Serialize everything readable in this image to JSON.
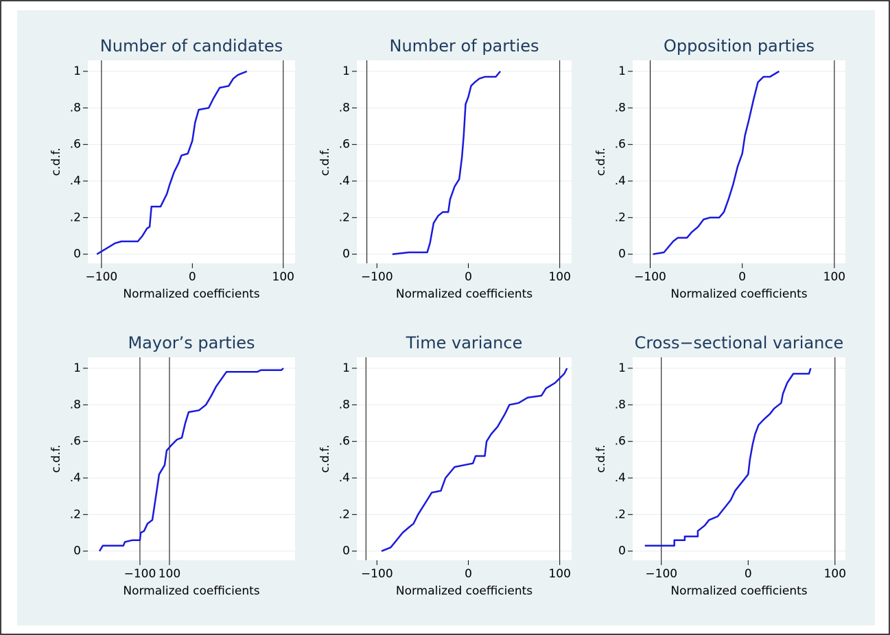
{
  "chart_data": [
    {
      "type": "line",
      "title": "Number of candidates",
      "xlabel": "Normalized coefficients",
      "ylabel": "c.d.f.",
      "color": "#1a1adc",
      "grid": true,
      "xlim": [
        -115,
        113
      ],
      "ylim": [
        -0.05,
        1.06
      ],
      "xticks": [
        {
          "value": -100,
          "label": "−100"
        },
        0,
        100
      ],
      "yticks": [
        0,
        {
          "value": 0.2,
          "label": ".2"
        },
        {
          "value": 0.4,
          "label": ".4"
        },
        {
          "value": 0.6,
          "label": ".6"
        },
        {
          "value": 0.8,
          "label": ".8"
        },
        1
      ],
      "vlines": [
        -100,
        100
      ],
      "x": [
        -105,
        -95,
        -85,
        -78,
        -60,
        -55,
        -50,
        -47,
        -45,
        -35,
        -28,
        -25,
        -20,
        -15,
        -12,
        -5,
        0,
        3,
        7,
        18,
        23,
        30,
        40,
        45,
        50,
        60
      ],
      "values": [
        0,
        0.03,
        0.06,
        0.07,
        0.07,
        0.1,
        0.14,
        0.15,
        0.26,
        0.26,
        0.33,
        0.38,
        0.45,
        0.5,
        0.54,
        0.55,
        0.62,
        0.72,
        0.79,
        0.8,
        0.85,
        0.91,
        0.92,
        0.96,
        0.98,
        1.0
      ]
    },
    {
      "type": "line",
      "title": "Number of parties",
      "xlabel": "Normalized coefficients",
      "ylabel": "c.d.f.",
      "color": "#1a1adc",
      "grid": true,
      "xlim": [
        -122,
        113
      ],
      "ylim": [
        -0.05,
        1.06
      ],
      "xticks": [
        {
          "value": -100,
          "label": "−100"
        },
        0,
        100
      ],
      "yticks": [
        0,
        {
          "value": 0.2,
          "label": ".2"
        },
        {
          "value": 0.4,
          "label": ".4"
        },
        {
          "value": 0.6,
          "label": ".6"
        },
        {
          "value": 0.8,
          "label": ".8"
        },
        1
      ],
      "vlines": [
        -111,
        100
      ],
      "x": [
        -83,
        -65,
        -45,
        -42,
        -38,
        -33,
        -28,
        -22,
        -20,
        -15,
        -10,
        -7,
        -5,
        -3,
        0,
        3,
        7,
        12,
        18,
        30,
        35
      ],
      "values": [
        0,
        0.01,
        0.01,
        0.06,
        0.17,
        0.21,
        0.23,
        0.23,
        0.3,
        0.37,
        0.41,
        0.53,
        0.65,
        0.82,
        0.86,
        0.92,
        0.94,
        0.96,
        0.97,
        0.97,
        1.0
      ]
    },
    {
      "type": "line",
      "title": "Opposition parties",
      "xlabel": "Normalized coefficients",
      "ylabel": "c.d.f.",
      "color": "#1a1adc",
      "grid": true,
      "xlim": [
        -119,
        112
      ],
      "ylim": [
        -0.05,
        1.06
      ],
      "xticks": [
        {
          "value": -100,
          "label": "−100"
        },
        0,
        100
      ],
      "yticks": [
        0,
        {
          "value": 0.2,
          "label": ".2"
        },
        {
          "value": 0.4,
          "label": ".4"
        },
        {
          "value": 0.6,
          "label": ".6"
        },
        {
          "value": 0.8,
          "label": ".8"
        },
        1
      ],
      "vlines": [
        -100,
        100
      ],
      "x": [
        -97,
        -85,
        -80,
        -75,
        -70,
        -60,
        -55,
        -48,
        -42,
        -35,
        -25,
        -20,
        -15,
        -10,
        -5,
        0,
        3,
        7,
        12,
        17,
        23,
        30,
        40
      ],
      "values": [
        0,
        0.01,
        0.04,
        0.07,
        0.09,
        0.09,
        0.12,
        0.15,
        0.19,
        0.2,
        0.2,
        0.23,
        0.3,
        0.38,
        0.48,
        0.55,
        0.65,
        0.73,
        0.84,
        0.94,
        0.97,
        0.97,
        1.0
      ]
    },
    {
      "type": "line",
      "title": "Mayor’s parties",
      "xlabel": "Normalized coefficients",
      "ylabel": "c.d.f.",
      "color": "#1a1adc",
      "grid": true,
      "xlim": [
        -453,
        951
      ],
      "ylim": [
        -0.05,
        1.06
      ],
      "xticks": [
        {
          "value": -100,
          "label": "−100"
        },
        100
      ],
      "yticks": [
        0,
        {
          "value": 0.2,
          "label": ".2"
        },
        {
          "value": 0.4,
          "label": ".4"
        },
        {
          "value": 0.6,
          "label": ".6"
        },
        {
          "value": 0.8,
          "label": ".8"
        },
        1
      ],
      "vlines": [
        -100,
        100
      ],
      "x": [
        -374,
        -351,
        -212,
        -202,
        -151,
        -100,
        -95,
        -72,
        -49,
        -16,
        12,
        30,
        67,
        81,
        114,
        151,
        184,
        207,
        230,
        300,
        347,
        384,
        416,
        486,
        695,
        719,
        858,
        872
      ],
      "values": [
        0,
        0.03,
        0.03,
        0.05,
        0.06,
        0.06,
        0.1,
        0.11,
        0.15,
        0.17,
        0.32,
        0.42,
        0.47,
        0.55,
        0.58,
        0.61,
        0.62,
        0.7,
        0.76,
        0.77,
        0.8,
        0.85,
        0.9,
        0.98,
        0.98,
        0.99,
        0.99,
        1.0
      ]
    },
    {
      "type": "line",
      "title": "Time variance",
      "xlabel": "Normalized coefficients",
      "ylabel": "c.d.f.",
      "color": "#1a1adc",
      "grid": true,
      "xlim": [
        -122,
        113
      ],
      "ylim": [
        -0.05,
        1.06
      ],
      "xticks": [
        {
          "value": -100,
          "label": "−100"
        },
        0,
        100
      ],
      "yticks": [
        0,
        {
          "value": 0.2,
          "label": ".2"
        },
        {
          "value": 0.4,
          "label": ".4"
        },
        {
          "value": 0.6,
          "label": ".6"
        },
        {
          "value": 0.8,
          "label": ".8"
        },
        1
      ],
      "vlines": [
        -112,
        100
      ],
      "x": [
        -95,
        -85,
        -80,
        -72,
        -65,
        -60,
        -55,
        -45,
        -40,
        -30,
        -25,
        -15,
        -5,
        5,
        8,
        18,
        20,
        25,
        32,
        40,
        45,
        55,
        65,
        80,
        85,
        95,
        105,
        108
      ],
      "values": [
        0,
        0.02,
        0.05,
        0.1,
        0.13,
        0.15,
        0.2,
        0.28,
        0.32,
        0.33,
        0.4,
        0.46,
        0.47,
        0.48,
        0.52,
        0.52,
        0.6,
        0.64,
        0.68,
        0.75,
        0.8,
        0.81,
        0.84,
        0.85,
        0.89,
        0.92,
        0.97,
        1.0
      ]
    },
    {
      "type": "line",
      "title": "Cross−sectional variance",
      "xlabel": "Normalized coefficients",
      "ylabel": "c.d.f.",
      "color": "#1a1adc",
      "grid": true,
      "xlim": [
        -133,
        112
      ],
      "ylim": [
        -0.05,
        1.06
      ],
      "xticks": [
        {
          "value": -100,
          "label": "−100"
        },
        0,
        100
      ],
      "yticks": [
        0,
        {
          "value": 0.2,
          "label": ".2"
        },
        {
          "value": 0.4,
          "label": ".4"
        },
        {
          "value": 0.6,
          "label": ".6"
        },
        {
          "value": 0.8,
          "label": ".8"
        },
        1
      ],
      "vlines": [
        -100,
        100
      ],
      "x": [
        -119,
        -85,
        -85,
        -73,
        -73,
        -58,
        -58,
        -50,
        -45,
        -35,
        -30,
        -25,
        -20,
        -15,
        -10,
        -5,
        0,
        2,
        5,
        8,
        12,
        18,
        25,
        30,
        38,
        40,
        45,
        52,
        70,
        72
      ],
      "values": [
        0.03,
        0.03,
        0.06,
        0.06,
        0.08,
        0.08,
        0.11,
        0.14,
        0.17,
        0.19,
        0.22,
        0.25,
        0.28,
        0.33,
        0.36,
        0.39,
        0.42,
        0.5,
        0.58,
        0.64,
        0.69,
        0.72,
        0.75,
        0.78,
        0.81,
        0.86,
        0.92,
        0.97,
        0.97,
        1.0
      ]
    }
  ]
}
